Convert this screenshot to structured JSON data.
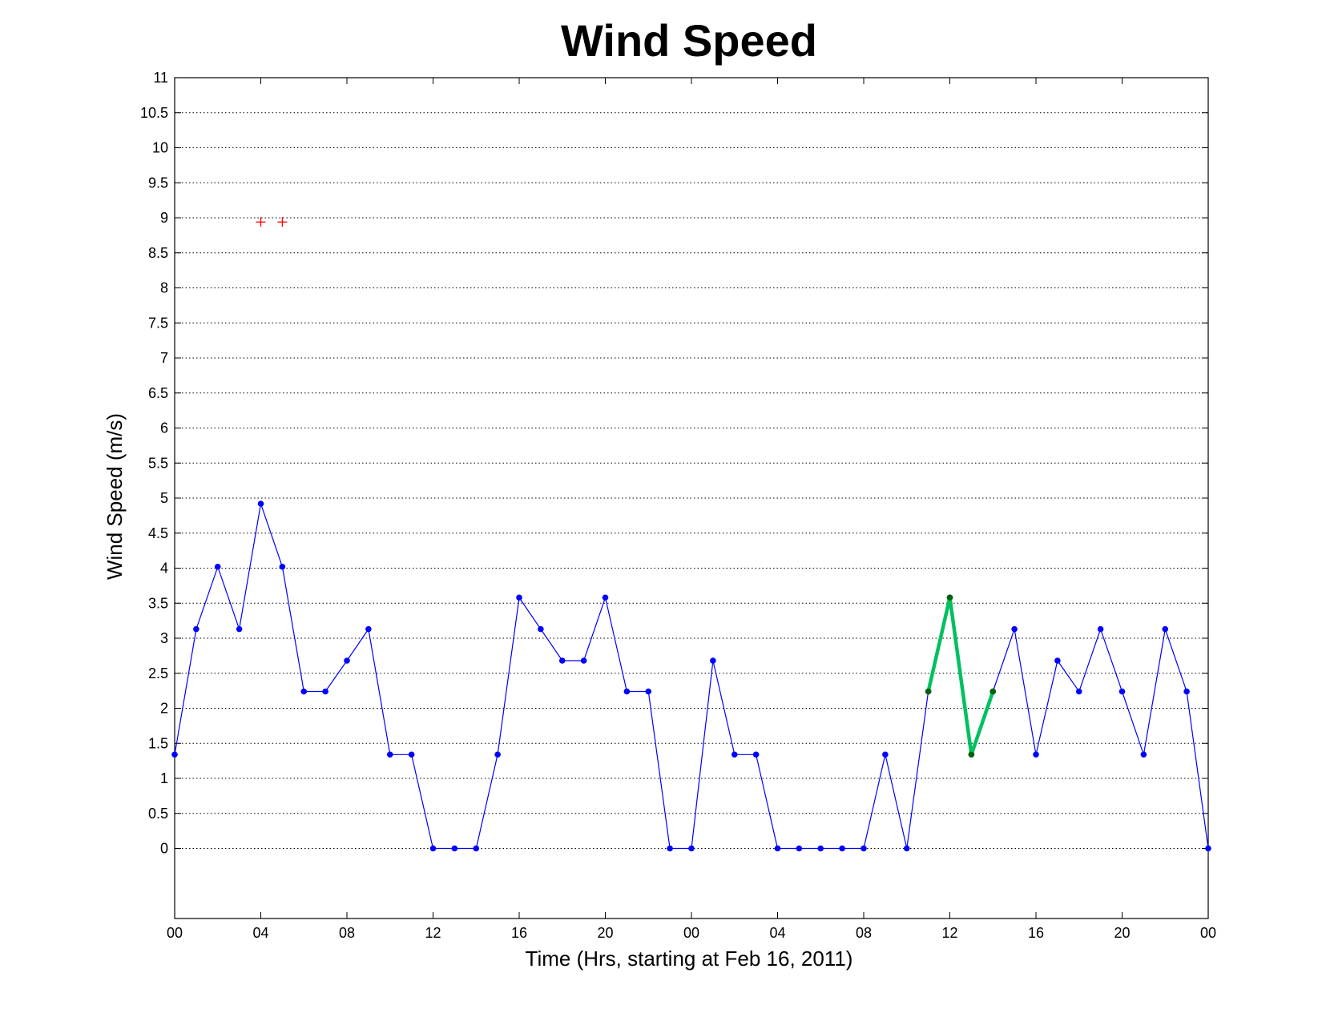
{
  "chart_data": {
    "type": "line",
    "title": "Wind Speed",
    "xlabel": "Time (Hrs, starting at Feb 16, 2011)",
    "ylabel": "Wind Speed (m/s)",
    "xlim": [
      0,
      48
    ],
    "ylim": [
      -1,
      11
    ],
    "x_ticks": [
      0,
      4,
      8,
      12,
      16,
      20,
      24,
      28,
      32,
      36,
      40,
      44,
      48
    ],
    "x_tick_labels": [
      "00",
      "04",
      "08",
      "12",
      "16",
      "20",
      "00",
      "04",
      "08",
      "12",
      "16",
      "20",
      "00"
    ],
    "y_ticks": [
      0,
      0.5,
      1,
      1.5,
      2,
      2.5,
      3,
      3.5,
      4,
      4.5,
      5,
      5.5,
      6,
      6.5,
      7,
      7.5,
      8,
      8.5,
      9,
      9.5,
      10,
      10.5,
      11
    ],
    "y_tick_labels": [
      "0",
      "0.5",
      "1",
      "1.5",
      "2",
      "2.5",
      "3",
      "3.5",
      "4",
      "4.5",
      "5",
      "5.5",
      "6",
      "6.5",
      "7",
      "7.5",
      "8",
      "8.5",
      "9",
      "9.5",
      "10",
      "10.5",
      "11"
    ],
    "grid": "horizontal dotted",
    "series": [
      {
        "style": "line-dot",
        "color": "#0000ff",
        "x": [
          0,
          1,
          2,
          3,
          4,
          5,
          6,
          7,
          8,
          9,
          10,
          11,
          12,
          13,
          14,
          15,
          16,
          17,
          18,
          19,
          20,
          21,
          22,
          23,
          24,
          25,
          26,
          27,
          28,
          29,
          30,
          31,
          32,
          33,
          34,
          35,
          36,
          37,
          38,
          39,
          40,
          41,
          42,
          43,
          44,
          45,
          46,
          47,
          48
        ],
        "y": [
          1.34,
          3.13,
          4.02,
          3.13,
          4.92,
          4.02,
          2.24,
          2.24,
          2.68,
          3.13,
          1.34,
          1.34,
          0,
          0,
          0,
          1.34,
          3.58,
          3.13,
          2.68,
          2.68,
          3.58,
          2.24,
          2.24,
          0,
          0,
          2.68,
          1.34,
          1.34,
          0,
          0,
          0,
          0,
          0,
          1.34,
          0,
          2.24,
          3.58,
          1.34,
          2.24,
          3.13,
          1.34,
          2.68,
          2.24,
          3.13,
          2.24,
          1.34,
          3.13,
          2.24,
          0
        ]
      },
      {
        "style": "thick-line",
        "color": "#00c060",
        "marker_color": "#006400",
        "x": [
          35,
          36,
          37,
          38
        ],
        "y": [
          2.24,
          3.58,
          1.34,
          2.24
        ]
      },
      {
        "style": "plus-markers",
        "color": "#ff0000",
        "x": [
          4,
          5
        ],
        "y": [
          8.94,
          8.94
        ]
      }
    ]
  }
}
